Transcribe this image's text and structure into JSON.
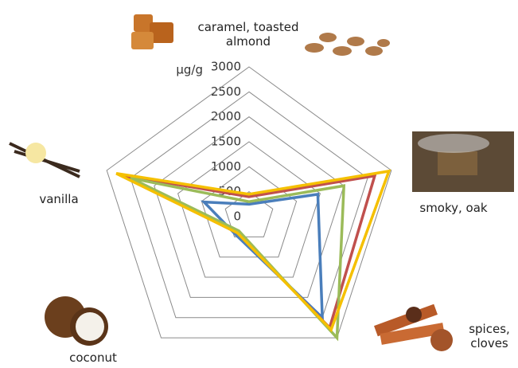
{
  "chart_data": {
    "type": "radar",
    "y_label": "µg/g",
    "categories": [
      "caramel, toasted almond",
      "smoky, oak",
      "spices, cloves",
      "coconut",
      "vanilla"
    ],
    "ylim": [
      0,
      3000
    ],
    "yticks": [
      0,
      500,
      1000,
      1500,
      2000,
      2500,
      3000
    ],
    "series": [
      {
        "color": "#4a7ebb",
        "values": [
          250,
          1450,
          2500,
          450,
          950
        ]
      },
      {
        "color": "#c0504d",
        "values": [
          400,
          2650,
          2750,
          400,
          2700
        ]
      },
      {
        "color": "#9bbb59",
        "values": [
          300,
          2000,
          3000,
          350,
          2500
        ]
      },
      {
        "color": "#f5c000",
        "values": [
          450,
          2950,
          2800,
          400,
          2800
        ]
      }
    ]
  }
}
